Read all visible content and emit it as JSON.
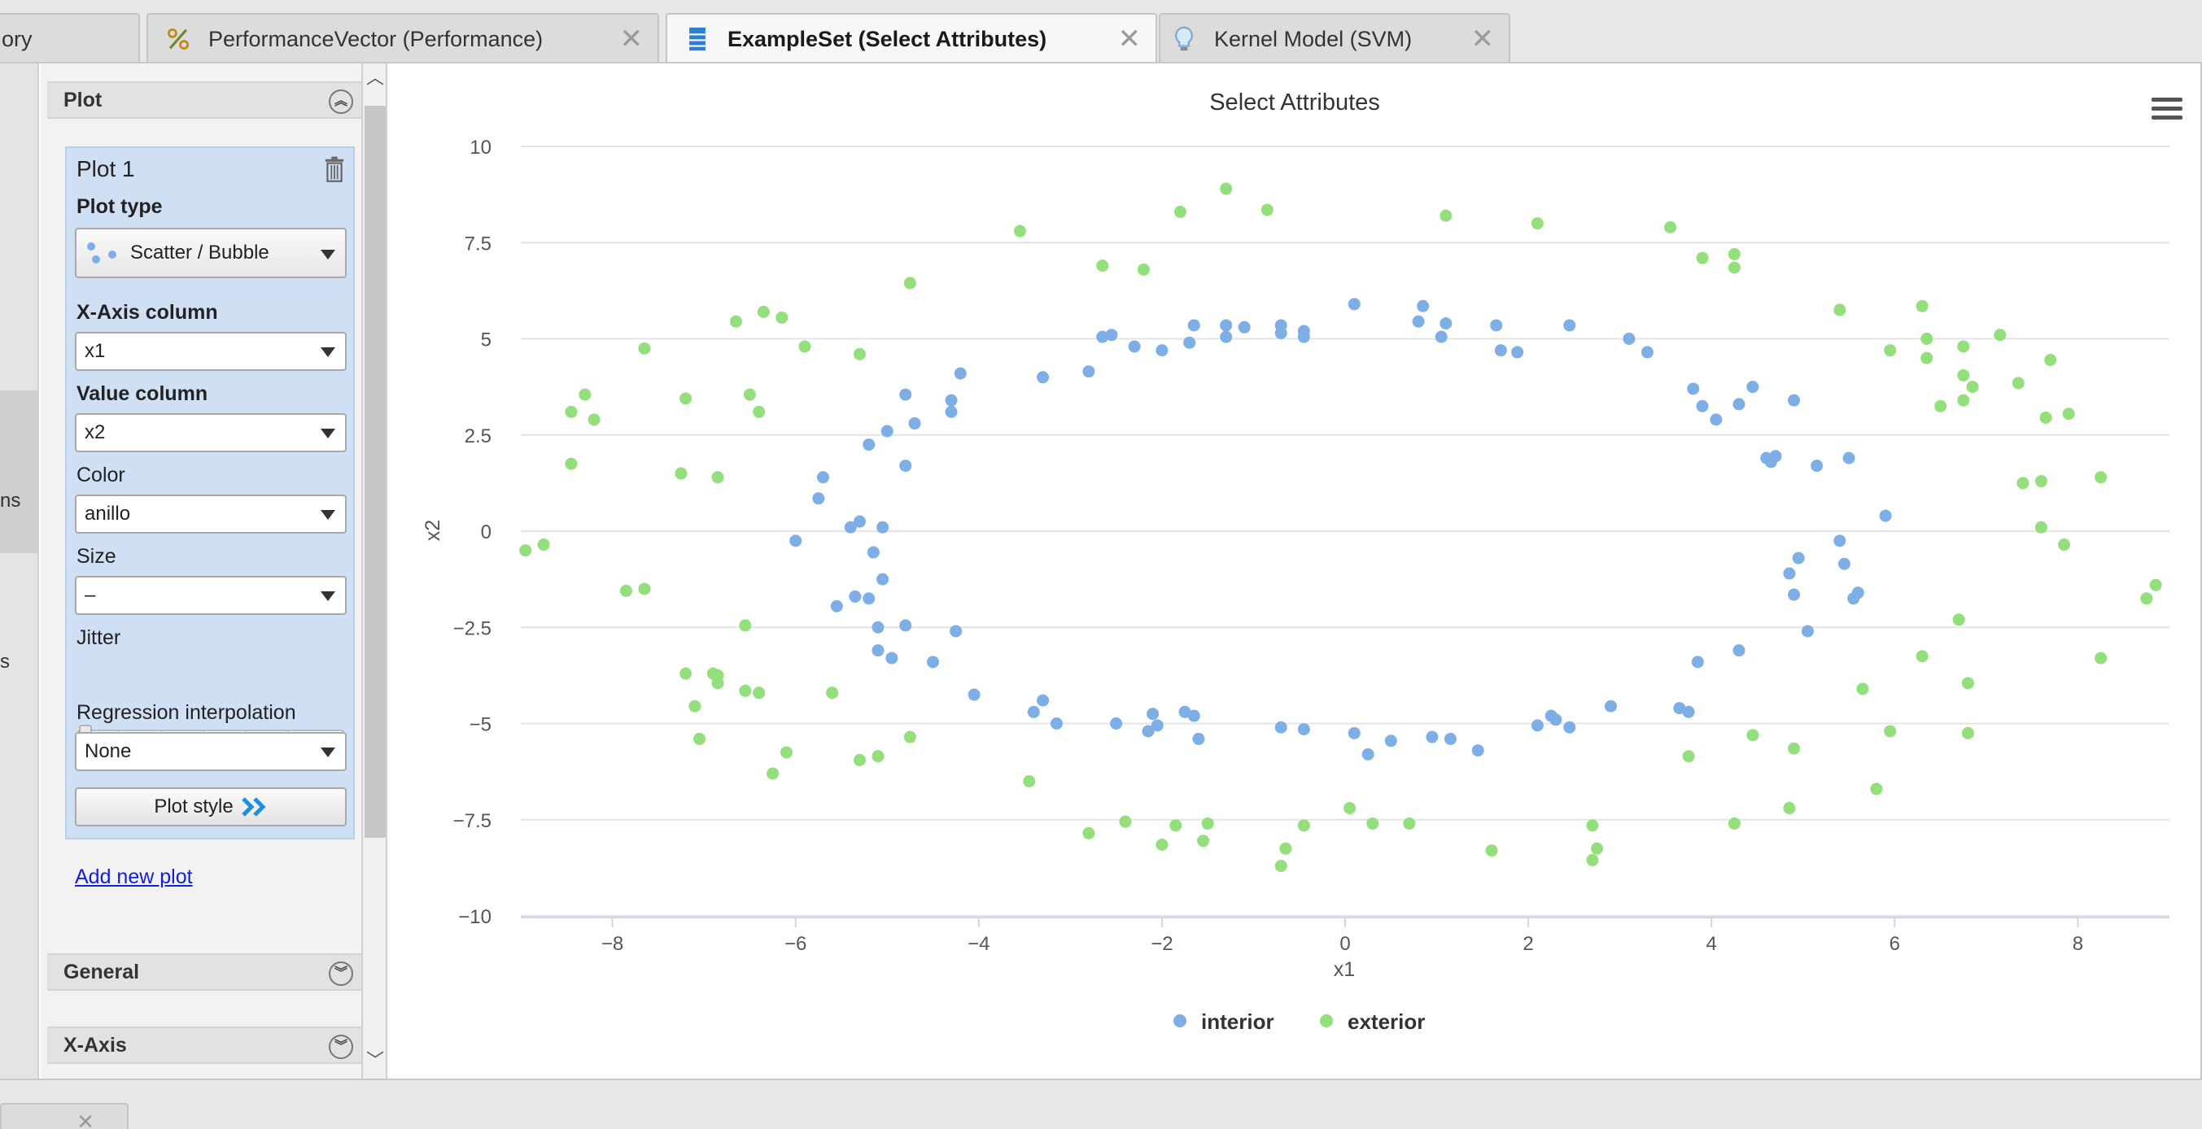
{
  "tabs": [
    {
      "label": "ory",
      "active": false
    },
    {
      "label": "PerformanceVector (Performance)",
      "active": false,
      "icon": "performance-icon"
    },
    {
      "label": "ExampleSet (Select Attributes)",
      "active": true,
      "icon": "exampleset-icon"
    },
    {
      "label": "Kernel Model (SVM)",
      "active": false,
      "icon": "bulb-icon"
    }
  ],
  "left_strip": {
    "frag1": "ns",
    "frag2": "s"
  },
  "panel": {
    "plot_section": "Plot",
    "plot_name": "Plot 1",
    "plot_type_label": "Plot type",
    "plot_type_value": "Scatter / Bubble",
    "x_axis_label": "X-Axis column",
    "x_axis_value": "x1",
    "value_label": "Value column",
    "value_value": "x2",
    "color_label": "Color",
    "color_value": "anillo",
    "size_label": "Size",
    "size_value": "–",
    "jitter_label": "Jitter",
    "regression_label": "Regression interpolation",
    "regression_value": "None",
    "plot_style_button": "Plot style",
    "add_new_plot": "Add new plot",
    "general_section": "General",
    "xaxis_section": "X-Axis"
  },
  "chart_data": {
    "type": "scatter",
    "title": "Select Attributes",
    "xlabel": "x1",
    "ylabel": "x2",
    "xlim": [
      -9,
      9
    ],
    "ylim": [
      -10,
      10
    ],
    "xticks": [
      -8,
      -6,
      -4,
      -2,
      0,
      2,
      4,
      6,
      8
    ],
    "yticks": [
      -10,
      -7.5,
      -5,
      -2.5,
      0,
      2.5,
      5,
      7.5,
      10
    ],
    "grid": true,
    "legend_position": "bottom",
    "series": [
      {
        "name": "interior",
        "color": "#7eaee6",
        "points": [
          [
            0.1,
            5.9
          ],
          [
            0.85,
            5.85
          ],
          [
            1.1,
            5.4
          ],
          [
            0.8,
            5.45
          ],
          [
            1.65,
            5.35
          ],
          [
            1.05,
            5.05
          ],
          [
            1.7,
            4.7
          ],
          [
            1.88,
            4.65
          ],
          [
            2.45,
            5.35
          ],
          [
            3.1,
            5.0
          ],
          [
            3.3,
            4.65
          ],
          [
            -0.7,
            5.35
          ],
          [
            -0.7,
            5.15
          ],
          [
            -0.45,
            5.2
          ],
          [
            -0.45,
            5.05
          ],
          [
            -1.3,
            5.35
          ],
          [
            -1.3,
            5.05
          ],
          [
            -1.1,
            5.3
          ],
          [
            -1.65,
            5.35
          ],
          [
            -1.7,
            4.9
          ],
          [
            -2.0,
            4.7
          ],
          [
            -2.3,
            4.8
          ],
          [
            -2.65,
            5.05
          ],
          [
            -2.55,
            5.1
          ],
          [
            -2.8,
            4.15
          ],
          [
            -3.3,
            4.0
          ],
          [
            -4.2,
            4.1
          ],
          [
            -4.3,
            3.4
          ],
          [
            -4.3,
            3.1
          ],
          [
            -4.8,
            3.55
          ],
          [
            -4.7,
            2.8
          ],
          [
            -5.0,
            2.6
          ],
          [
            -5.2,
            2.25
          ],
          [
            -4.8,
            1.7
          ],
          [
            -5.7,
            1.4
          ],
          [
            -5.75,
            0.85
          ],
          [
            -5.3,
            0.25
          ],
          [
            -5.4,
            0.1
          ],
          [
            -5.05,
            0.1
          ],
          [
            -6.0,
            -0.25
          ],
          [
            -5.15,
            -0.55
          ],
          [
            -5.05,
            -1.25
          ],
          [
            -5.35,
            -1.7
          ],
          [
            -5.2,
            -1.75
          ],
          [
            -5.55,
            -1.95
          ],
          [
            -5.1,
            -2.5
          ],
          [
            -4.8,
            -2.45
          ],
          [
            -4.25,
            -2.6
          ],
          [
            -5.1,
            -3.1
          ],
          [
            -4.95,
            -3.3
          ],
          [
            -4.5,
            -3.4
          ],
          [
            -4.05,
            -4.25
          ],
          [
            -3.3,
            -4.4
          ],
          [
            -3.4,
            -4.7
          ],
          [
            -3.15,
            -5.0
          ],
          [
            -2.5,
            -5.0
          ],
          [
            -2.1,
            -4.75
          ],
          [
            -2.15,
            -5.2
          ],
          [
            -2.05,
            -5.05
          ],
          [
            -1.75,
            -4.7
          ],
          [
            -1.65,
            -4.8
          ],
          [
            -1.6,
            -5.4
          ],
          [
            -0.7,
            -5.1
          ],
          [
            -0.45,
            -5.15
          ],
          [
            0.1,
            -5.25
          ],
          [
            0.25,
            -5.8
          ],
          [
            0.5,
            -5.45
          ],
          [
            0.95,
            -5.35
          ],
          [
            1.15,
            -5.4
          ],
          [
            1.45,
            -5.7
          ],
          [
            2.1,
            -5.05
          ],
          [
            2.25,
            -4.8
          ],
          [
            2.3,
            -4.9
          ],
          [
            2.45,
            -5.1
          ],
          [
            2.9,
            -4.55
          ],
          [
            3.65,
            -4.6
          ],
          [
            3.75,
            -4.7
          ],
          [
            3.85,
            -3.4
          ],
          [
            4.3,
            -3.1
          ],
          [
            4.45,
            3.75
          ],
          [
            4.3,
            3.3
          ],
          [
            3.8,
            3.7
          ],
          [
            3.9,
            3.25
          ],
          [
            4.05,
            2.9
          ],
          [
            4.6,
            1.9
          ],
          [
            4.65,
            1.8
          ],
          [
            4.7,
            1.95
          ],
          [
            4.9,
            3.4
          ],
          [
            5.15,
            1.7
          ],
          [
            5.5,
            1.9
          ],
          [
            5.9,
            0.4
          ],
          [
            4.95,
            -0.7
          ],
          [
            5.4,
            -0.25
          ],
          [
            5.45,
            -0.85
          ],
          [
            4.85,
            -1.1
          ],
          [
            4.9,
            -1.65
          ],
          [
            5.55,
            -1.75
          ],
          [
            5.6,
            -1.6
          ],
          [
            5.05,
            -2.6
          ]
        ]
      },
      {
        "name": "exterior",
        "color": "#93df7c",
        "points": [
          [
            -1.3,
            8.9
          ],
          [
            -0.85,
            8.35
          ],
          [
            -1.8,
            8.3
          ],
          [
            1.1,
            8.2
          ],
          [
            2.1,
            8.0
          ],
          [
            3.55,
            7.9
          ],
          [
            -3.55,
            7.8
          ],
          [
            -2.65,
            6.9
          ],
          [
            -2.2,
            6.8
          ],
          [
            4.25,
            6.85
          ],
          [
            4.25,
            7.2
          ],
          [
            3.9,
            7.1
          ],
          [
            -4.75,
            6.45
          ],
          [
            -6.35,
            5.7
          ],
          [
            -6.15,
            5.55
          ],
          [
            -6.65,
            5.45
          ],
          [
            -5.9,
            4.8
          ],
          [
            -5.3,
            4.6
          ],
          [
            -7.65,
            4.75
          ],
          [
            5.4,
            5.75
          ],
          [
            6.3,
            5.85
          ],
          [
            6.35,
            5.0
          ],
          [
            6.35,
            4.5
          ],
          [
            5.95,
            4.7
          ],
          [
            6.75,
            4.8
          ],
          [
            7.15,
            5.1
          ],
          [
            6.75,
            4.05
          ],
          [
            6.85,
            3.75
          ],
          [
            6.75,
            3.4
          ],
          [
            6.5,
            3.25
          ],
          [
            7.35,
            3.85
          ],
          [
            7.7,
            4.45
          ],
          [
            7.65,
            2.95
          ],
          [
            7.9,
            3.05
          ],
          [
            7.4,
            1.25
          ],
          [
            7.6,
            1.3
          ],
          [
            7.6,
            0.1
          ],
          [
            7.85,
            -0.35
          ],
          [
            8.25,
            1.4
          ],
          [
            8.85,
            -1.4
          ],
          [
            8.75,
            -1.75
          ],
          [
            8.25,
            -3.3
          ],
          [
            6.7,
            -2.3
          ],
          [
            6.3,
            -3.25
          ],
          [
            6.8,
            -3.95
          ],
          [
            5.65,
            -4.1
          ],
          [
            5.95,
            -5.2
          ],
          [
            6.8,
            -5.25
          ],
          [
            5.8,
            -6.7
          ],
          [
            4.9,
            -5.65
          ],
          [
            4.45,
            -5.3
          ],
          [
            4.85,
            -7.2
          ],
          [
            4.25,
            -7.6
          ],
          [
            3.75,
            -5.85
          ],
          [
            2.7,
            -7.65
          ],
          [
            2.75,
            -8.25
          ],
          [
            2.7,
            -8.55
          ],
          [
            1.6,
            -8.3
          ],
          [
            0.7,
            -7.6
          ],
          [
            0.3,
            -7.6
          ],
          [
            0.05,
            -7.2
          ],
          [
            -0.45,
            -7.65
          ],
          [
            -0.65,
            -8.25
          ],
          [
            -0.7,
            -8.7
          ],
          [
            -1.5,
            -7.6
          ],
          [
            -1.55,
            -8.05
          ],
          [
            -1.85,
            -7.65
          ],
          [
            -2.0,
            -8.15
          ],
          [
            -2.4,
            -7.55
          ],
          [
            -2.8,
            -7.85
          ],
          [
            -3.45,
            -6.5
          ],
          [
            -4.75,
            -5.35
          ],
          [
            -5.1,
            -5.85
          ],
          [
            -5.3,
            -5.95
          ],
          [
            -5.6,
            -4.2
          ],
          [
            -6.1,
            -5.75
          ],
          [
            -6.25,
            -6.3
          ],
          [
            -6.4,
            -4.2
          ],
          [
            -6.55,
            -4.15
          ],
          [
            -6.55,
            -2.45
          ],
          [
            -6.85,
            -3.75
          ],
          [
            -6.85,
            -3.95
          ],
          [
            -6.9,
            -3.7
          ],
          [
            -7.05,
            -5.4
          ],
          [
            -7.1,
            -4.55
          ],
          [
            -7.2,
            -3.7
          ],
          [
            -7.65,
            -1.5
          ],
          [
            -7.85,
            -1.55
          ],
          [
            -8.75,
            -0.35
          ],
          [
            -8.95,
            -0.5
          ],
          [
            -8.45,
            1.75
          ],
          [
            -8.45,
            3.1
          ],
          [
            -8.3,
            3.55
          ],
          [
            -8.2,
            2.9
          ],
          [
            -7.2,
            3.45
          ],
          [
            -7.25,
            1.5
          ],
          [
            -6.85,
            1.4
          ],
          [
            -6.4,
            3.1
          ],
          [
            -6.5,
            3.55
          ]
        ]
      }
    ]
  }
}
